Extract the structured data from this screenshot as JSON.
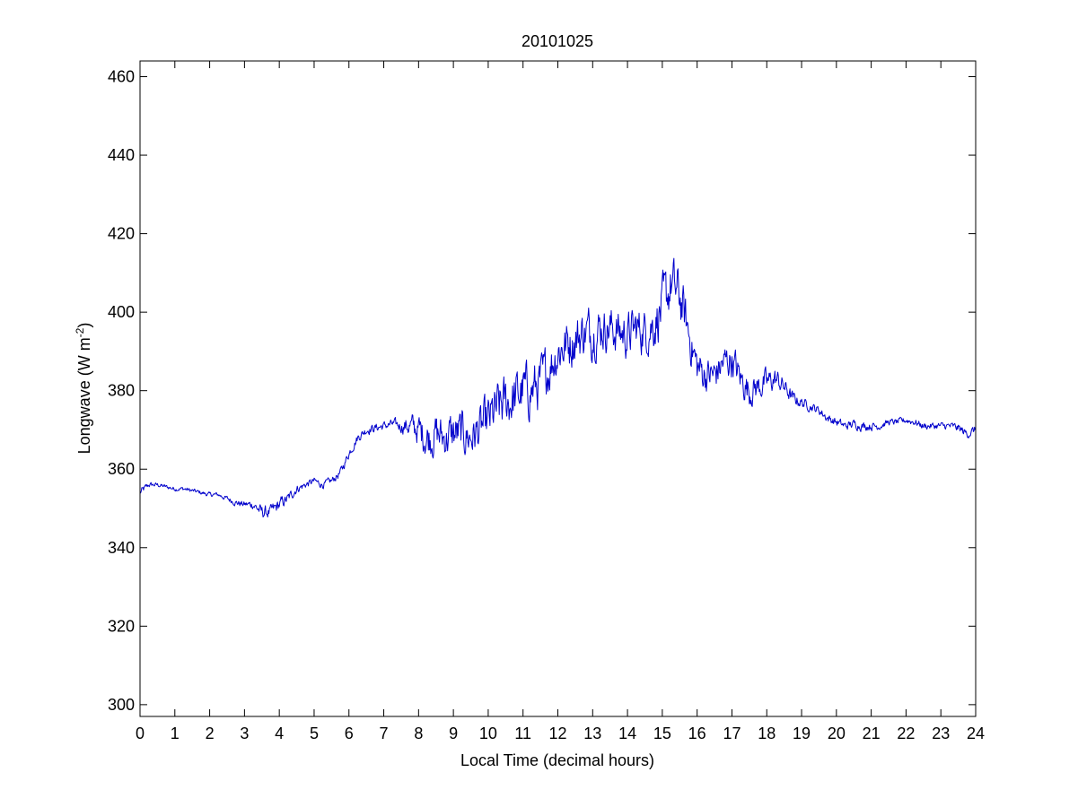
{
  "chart_data": {
    "type": "line",
    "title": "20101025",
    "xlabel": "Local Time (decimal hours)",
    "ylabel": {
      "text": "Longwave (W m",
      "superscript": "-2",
      "close": ")"
    },
    "xlim": [
      0,
      24
    ],
    "ylim": [
      297,
      464
    ],
    "xticks": [
      0,
      1,
      2,
      3,
      4,
      5,
      6,
      7,
      8,
      9,
      10,
      11,
      12,
      13,
      14,
      15,
      16,
      17,
      18,
      19,
      20,
      21,
      22,
      23,
      24
    ],
    "yticks": [
      300,
      320,
      340,
      360,
      380,
      400,
      420,
      440,
      460
    ],
    "grid": false,
    "line_color": "#0000cc",
    "series": [
      {
        "x": [
          0,
          0.25,
          0.5,
          0.75,
          1,
          1.25,
          1.5,
          1.75,
          2,
          2.25,
          2.5,
          2.75,
          3,
          3.25,
          3.5,
          3.75,
          4,
          4.25,
          4.5,
          4.75,
          5,
          5.25,
          5.5,
          5.75,
          6,
          6.25,
          6.5,
          6.75,
          7,
          7.25,
          7.5,
          7.75,
          8,
          8.25,
          8.5,
          8.75,
          9,
          9.25,
          9.5,
          9.75,
          10,
          10.25,
          10.5,
          10.75,
          11,
          11.25,
          11.5,
          11.75,
          12,
          12.25,
          12.5,
          12.75,
          13,
          13.25,
          13.5,
          13.75,
          14,
          14.25,
          14.5,
          14.75,
          15,
          15.25,
          15.5,
          15.75,
          16,
          16.25,
          16.5,
          16.75,
          17,
          17.25,
          17.5,
          17.75,
          18,
          18.25,
          18.5,
          18.75,
          19,
          19.25,
          19.5,
          19.75,
          20,
          20.25,
          20.5,
          20.75,
          21,
          21.25,
          21.5,
          21.75,
          22,
          22.25,
          22.5,
          22.75,
          23,
          23.25,
          23.5,
          23.75,
          24
        ],
        "values": [
          354,
          356,
          356,
          355.5,
          355,
          355,
          354.5,
          354,
          353.5,
          353.5,
          352.5,
          351.5,
          351,
          351,
          349,
          349,
          351,
          352.5,
          355,
          356,
          357,
          356,
          357,
          359,
          364,
          368,
          370,
          370.5,
          371,
          371.5,
          371,
          371,
          370,
          368,
          369,
          368,
          369,
          369,
          368,
          370,
          372,
          375,
          377,
          378,
          380,
          380,
          382,
          386,
          390,
          392,
          393,
          395,
          395,
          396,
          396,
          395,
          394,
          396,
          395,
          397,
          401,
          407,
          404,
          395,
          386,
          384,
          384,
          387,
          388,
          383,
          380,
          381,
          382,
          383,
          381,
          378,
          377,
          376,
          375,
          373,
          372,
          371,
          371.5,
          371,
          371,
          371,
          372,
          372,
          372.5,
          372,
          371,
          371,
          371,
          371,
          370.5,
          369,
          370
        ],
        "noise": [
          1,
          0.6,
          0.5,
          0.5,
          0.5,
          0.5,
          0.5,
          0.5,
          0.5,
          0.5,
          0.6,
          0.7,
          0.8,
          1,
          1.5,
          1.5,
          1.5,
          1.2,
          1,
          0.8,
          0.8,
          0.8,
          0.8,
          1,
          1,
          1,
          1,
          1,
          1,
          1,
          1.5,
          2.5,
          3.5,
          4.5,
          4.5,
          4.5,
          5,
          5,
          4.5,
          5,
          5.5,
          6,
          6,
          6,
          6,
          6,
          5.5,
          5.5,
          5.5,
          5.5,
          5.5,
          5.5,
          5.5,
          5,
          5,
          5,
          5,
          5,
          5,
          5.5,
          6,
          6,
          6,
          5,
          4.5,
          4,
          4,
          4,
          4,
          3.5,
          3.5,
          3,
          3,
          2.5,
          2,
          1.5,
          1.2,
          1,
          1,
          1,
          1,
          1,
          1,
          1,
          1,
          0.8,
          0.7,
          0.7,
          0.8,
          0.8,
          0.8,
          0.8,
          0.8,
          0.8,
          1,
          1,
          1
        ]
      }
    ]
  }
}
